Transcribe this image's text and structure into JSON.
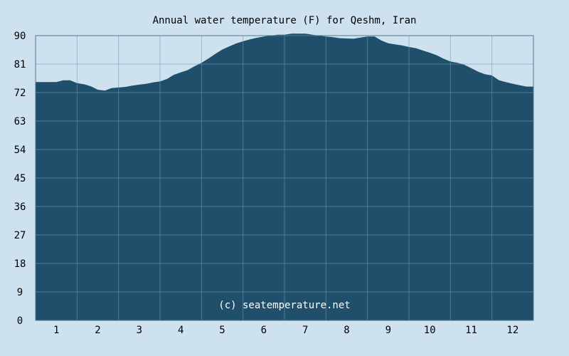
{
  "chart_data": {
    "type": "area",
    "title": "Annual water temperature (F) for Qeshm, Iran",
    "xlabel": "",
    "ylabel": "",
    "categories": [
      "1",
      "2",
      "3",
      "4",
      "5",
      "6",
      "7",
      "8",
      "9",
      "10",
      "11",
      "12"
    ],
    "yticks": [
      0,
      9,
      18,
      27,
      36,
      45,
      54,
      63,
      72,
      81,
      90
    ],
    "ylim": [
      0,
      90
    ],
    "grid": true,
    "watermark": "(c) seatemperature.net",
    "x": [
      1,
      1.17,
      1.33,
      1.5,
      1.67,
      1.83,
      2,
      2.17,
      2.33,
      2.5,
      2.67,
      2.83,
      3,
      3.17,
      3.33,
      3.5,
      3.67,
      3.83,
      4,
      4.17,
      4.33,
      4.5,
      4.67,
      4.83,
      5,
      5.17,
      5.33,
      5.5,
      5.67,
      5.83,
      6,
      6.17,
      6.33,
      6.5,
      6.67,
      6.83,
      7,
      7.17,
      7.33,
      7.5,
      7.67,
      7.83,
      8,
      8.17,
      8.33,
      8.5,
      8.67,
      8.83,
      9,
      9.17,
      9.33,
      9.5,
      9.67,
      9.83,
      10,
      10.17,
      10.33,
      10.5,
      10.67,
      10.83,
      11,
      11.17,
      11.33,
      11.5,
      11.67,
      11.83,
      12,
      12.17,
      12.33
    ],
    "values": [
      75.3,
      75.9,
      75.9,
      75.0,
      74.6,
      74.0,
      72.9,
      72.6,
      73.4,
      73.6,
      73.8,
      74.2,
      74.5,
      74.8,
      75.2,
      75.5,
      76.3,
      77.6,
      78.4,
      79.1,
      80.3,
      81.4,
      82.8,
      84.2,
      85.6,
      86.6,
      87.5,
      88.2,
      88.8,
      89.3,
      89.7,
      90.0,
      90.3,
      90.3,
      90.6,
      90.6,
      90.6,
      90.3,
      90.0,
      89.7,
      89.5,
      89.2,
      89.1,
      89.0,
      89.4,
      89.7,
      89.7,
      88.5,
      87.6,
      87.2,
      86.9,
      86.4,
      86.0,
      85.3,
      84.6,
      83.8,
      82.7,
      81.8,
      81.4,
      80.8,
      79.7,
      78.6,
      77.8,
      77.4,
      75.9,
      75.3,
      74.8,
      74.3,
      73.9
    ]
  },
  "colors": {
    "background": "#cde2ee",
    "plot_background": "#cde2ee",
    "fill": "#1f4f6b",
    "grid_over_fill": "#4f7a92",
    "grid_over_bg": "#98b8cc",
    "axis": "#4f7a92"
  }
}
